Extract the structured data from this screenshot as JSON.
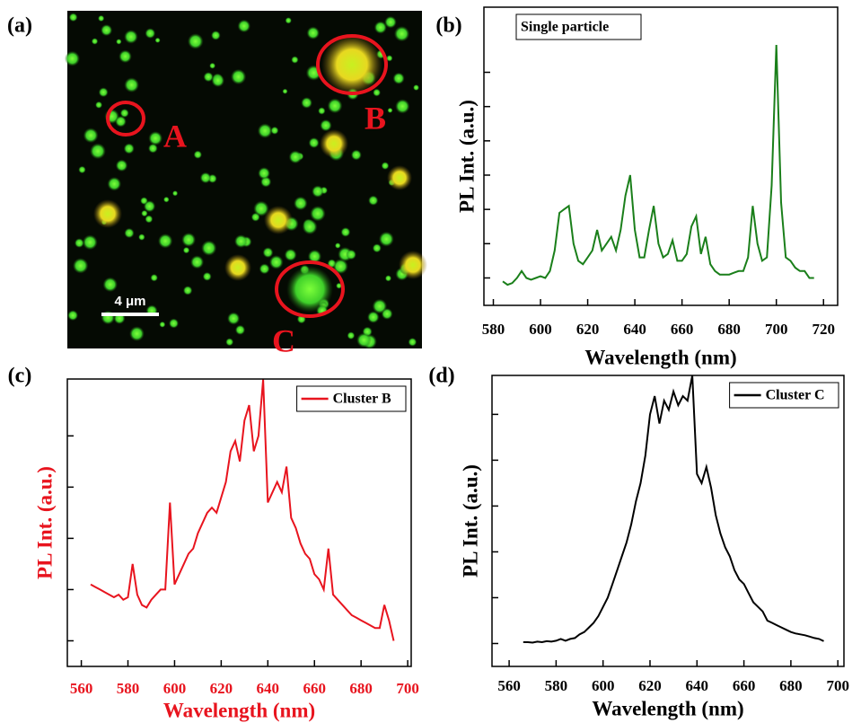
{
  "chart_data": [
    {
      "type": "image",
      "panel": "(a)",
      "annotations": [
        "A",
        "B",
        "C"
      ],
      "scale_bar": "4 μm",
      "circle_color": "#e8141e"
    },
    {
      "type": "line",
      "panel": "(b)",
      "xlabel": "Wavelength (nm)",
      "ylabel": "PL Int. (a.u.)",
      "legend": "upper left",
      "legend_marker": false,
      "xlim": [
        576,
        726
      ],
      "xticks": [
        580,
        600,
        620,
        640,
        660,
        680,
        700,
        720
      ],
      "ylim": [
        0,
        8.7
      ],
      "yticks": [
        0.8,
        1.8,
        2.8,
        3.8,
        4.8,
        5.8,
        6.8
      ],
      "x": [
        584,
        586,
        588,
        590,
        592,
        594,
        596,
        598,
        600,
        602,
        604,
        606,
        608,
        610,
        612,
        614,
        616,
        618,
        620,
        622,
        624,
        626,
        628,
        630,
        632,
        634,
        636,
        638,
        640,
        642,
        644,
        646,
        648,
        650,
        652,
        654,
        656,
        658,
        660,
        662,
        664,
        666,
        668,
        670,
        672,
        674,
        676,
        678,
        680,
        682,
        684,
        686,
        688,
        690,
        692,
        694,
        696,
        698,
        700,
        702,
        704,
        706,
        708,
        710,
        712,
        714,
        716
      ],
      "series": [
        {
          "name": "Single particle",
          "color": "#1a7f1a",
          "values": [
            0.7,
            0.6,
            0.65,
            0.8,
            1.0,
            0.8,
            0.75,
            0.8,
            0.85,
            0.8,
            1.0,
            1.6,
            2.7,
            2.8,
            2.9,
            1.8,
            1.3,
            1.2,
            1.4,
            1.6,
            2.2,
            1.6,
            1.8,
            2.0,
            1.6,
            2.2,
            3.2,
            3.8,
            2.2,
            1.4,
            1.4,
            2.2,
            2.9,
            1.8,
            1.4,
            1.5,
            1.9,
            1.3,
            1.3,
            1.5,
            2.3,
            2.6,
            1.5,
            2.0,
            1.2,
            1.0,
            0.9,
            0.9,
            0.9,
            0.95,
            1.0,
            1.0,
            1.4,
            2.9,
            1.8,
            1.3,
            1.4,
            3.5,
            7.6,
            3.0,
            1.4,
            1.3,
            1.1,
            1.0,
            1.0,
            0.8,
            0.8
          ]
        }
      ]
    },
    {
      "type": "line",
      "panel": "(c)",
      "xlabel": "Wavelength (nm)",
      "ylabel": "PL Int. (a.u.)",
      "label_color": "#e8141e",
      "legend": "upper right",
      "legend_marker": true,
      "xlim": [
        554,
        701.5
      ],
      "xticks": [
        560,
        580,
        600,
        620,
        640,
        660,
        680,
        700
      ],
      "ylim": [
        0,
        5.61
      ],
      "yticks": [
        0.5,
        1.5,
        2.5,
        3.5,
        4.5
      ],
      "x": [
        564,
        566,
        568,
        570,
        572,
        574,
        576,
        578,
        580,
        582,
        584,
        586,
        588,
        590,
        592,
        594,
        596,
        598,
        600,
        602,
        604,
        606,
        608,
        610,
        612,
        614,
        616,
        618,
        620,
        622,
        624,
        626,
        628,
        630,
        632,
        634,
        636,
        638,
        640,
        642,
        644,
        646,
        648,
        650,
        652,
        654,
        656,
        658,
        660,
        662,
        664,
        666,
        668,
        670,
        672,
        674,
        676,
        678,
        680,
        682,
        684,
        686,
        688,
        690,
        692,
        694
      ],
      "series": [
        {
          "name": "Cluster B",
          "color": "#e8141e",
          "values": [
            1.6,
            1.55,
            1.5,
            1.45,
            1.4,
            1.35,
            1.4,
            1.3,
            1.35,
            2.0,
            1.4,
            1.2,
            1.15,
            1.3,
            1.4,
            1.5,
            1.5,
            3.2,
            1.6,
            1.8,
            2.0,
            2.2,
            2.3,
            2.6,
            2.8,
            3.0,
            3.1,
            3.0,
            3.3,
            3.6,
            4.2,
            4.4,
            4.0,
            4.8,
            5.1,
            4.2,
            4.5,
            5.6,
            3.2,
            3.4,
            3.6,
            3.4,
            3.9,
            2.9,
            2.7,
            2.4,
            2.2,
            2.1,
            1.8,
            1.7,
            1.5,
            2.3,
            1.4,
            1.3,
            1.2,
            1.1,
            1.0,
            0.95,
            0.9,
            0.85,
            0.8,
            0.75,
            0.75,
            1.2,
            0.9,
            0.5
          ]
        }
      ]
    },
    {
      "type": "line",
      "panel": "(d)",
      "xlabel": "Wavelength (nm)",
      "ylabel": "PL Int. (a.u.)",
      "legend": "upper right",
      "legend_marker": true,
      "xlim": [
        552.7,
        702.6
      ],
      "xticks": [
        560,
        580,
        600,
        620,
        640,
        660,
        680,
        700
      ],
      "ylim": [
        0,
        6.35
      ],
      "yticks": [
        0.5,
        1.5,
        2.5,
        3.5,
        4.5,
        5.5
      ],
      "x": [
        566,
        568,
        570,
        572,
        574,
        576,
        578,
        580,
        582,
        584,
        586,
        588,
        590,
        592,
        594,
        596,
        598,
        600,
        602,
        604,
        606,
        608,
        610,
        612,
        614,
        616,
        618,
        620,
        622,
        624,
        626,
        628,
        630,
        632,
        634,
        636,
        638,
        640,
        642,
        644,
        646,
        648,
        650,
        652,
        654,
        656,
        658,
        660,
        662,
        664,
        666,
        668,
        670,
        672,
        674,
        676,
        678,
        680,
        682,
        684,
        686,
        688,
        690,
        692,
        694
      ],
      "series": [
        {
          "name": "Cluster C",
          "color": "#000000",
          "values": [
            0.53,
            0.53,
            0.52,
            0.54,
            0.53,
            0.55,
            0.54,
            0.56,
            0.6,
            0.56,
            0.6,
            0.62,
            0.7,
            0.75,
            0.85,
            0.95,
            1.1,
            1.3,
            1.5,
            1.8,
            2.1,
            2.4,
            2.7,
            3.1,
            3.6,
            4.0,
            4.6,
            5.5,
            5.9,
            5.3,
            5.8,
            5.6,
            6.0,
            5.7,
            5.9,
            5.8,
            6.35,
            4.2,
            4.0,
            4.35,
            3.9,
            3.3,
            2.9,
            2.6,
            2.4,
            2.1,
            1.9,
            1.8,
            1.6,
            1.4,
            1.3,
            1.2,
            1.0,
            0.95,
            0.9,
            0.85,
            0.8,
            0.75,
            0.72,
            0.7,
            0.68,
            0.65,
            0.62,
            0.6,
            0.55
          ]
        }
      ]
    }
  ]
}
